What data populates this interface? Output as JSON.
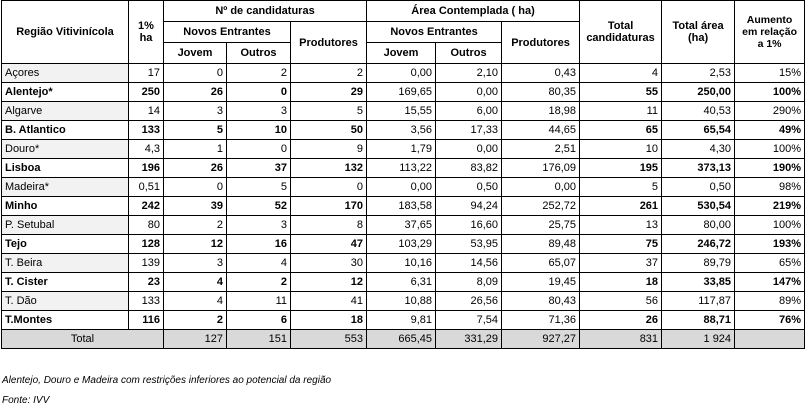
{
  "table": {
    "header": {
      "region": "Região Vitivinícola",
      "pct": "1% ha",
      "candidaturas": "Nº de candidaturas",
      "area": "Área Contemplada ( ha)",
      "total_cand": "Total candidaturas",
      "total_area": "Total área (ha)",
      "aumento": "Aumento em relação a 1%",
      "novos_1": "Novos Entrantes",
      "produtores_1": "Produtores",
      "novos_2": "Novos Entrantes",
      "produtores_2": "Produtores",
      "jovem_1": "Jovem",
      "outros_1": "Outros",
      "jovem_2": "Jovem",
      "outros_2": "Outros"
    },
    "rows": [
      [
        "Açores",
        "17",
        "0",
        "2",
        "2",
        "0,00",
        "2,10",
        "0,43",
        "4",
        "2,53",
        "15%"
      ],
      [
        "Alentejo*",
        "250",
        "26",
        "0",
        "29",
        "169,65",
        "0,00",
        "80,35",
        "55",
        "250,00",
        "100%"
      ],
      [
        "Algarve",
        "14",
        "3",
        "3",
        "5",
        "15,55",
        "6,00",
        "18,98",
        "11",
        "40,53",
        "290%"
      ],
      [
        "B. Atlantico",
        "133",
        "5",
        "10",
        "50",
        "3,56",
        "17,33",
        "44,65",
        "65",
        "65,54",
        "49%"
      ],
      [
        "Douro*",
        "4,3",
        "1",
        "0",
        "9",
        "1,79",
        "0,00",
        "2,51",
        "10",
        "4,30",
        "100%"
      ],
      [
        "Lisboa",
        "196",
        "26",
        "37",
        "132",
        "113,22",
        "83,82",
        "176,09",
        "195",
        "373,13",
        "190%"
      ],
      [
        "Madeira*",
        "0,51",
        "0",
        "5",
        "0",
        "0,00",
        "0,50",
        "0,00",
        "5",
        "0,50",
        "98%"
      ],
      [
        "Minho",
        "242",
        "39",
        "52",
        "170",
        "183,58",
        "94,24",
        "252,72",
        "261",
        "530,54",
        "219%"
      ],
      [
        "P. Setubal",
        "80",
        "2",
        "3",
        "8",
        "37,65",
        "16,60",
        "25,75",
        "13",
        "80,00",
        "100%"
      ],
      [
        "Tejo",
        "128",
        "12",
        "16",
        "47",
        "103,29",
        "53,95",
        "89,48",
        "75",
        "246,72",
        "193%"
      ],
      [
        "T. Beira",
        "139",
        "3",
        "4",
        "30",
        "10,16",
        "14,56",
        "65,07",
        "37",
        "89,79",
        "65%"
      ],
      [
        "T. Cister",
        "23",
        "4",
        "2",
        "12",
        "6,31",
        "8,09",
        "19,45",
        "18",
        "33,85",
        "147%"
      ],
      [
        "T. Dão",
        "133",
        "4",
        "11",
        "41",
        "10,88",
        "26,56",
        "80,43",
        "56",
        "117,87",
        "89%"
      ],
      [
        "T.Montes",
        "116",
        "2",
        "6",
        "18",
        "9,81",
        "7,54",
        "71,36",
        "26",
        "88,71",
        "76%"
      ]
    ],
    "total": [
      "Total",
      "127",
      "151",
      "553",
      "665,45",
      "331,29",
      "927,27",
      "831",
      "1 924"
    ],
    "notes": [
      "Alentejo, Douro e Madeira  com restrições inferiores ao potencial da região",
      "Fonte: IVV"
    ]
  }
}
